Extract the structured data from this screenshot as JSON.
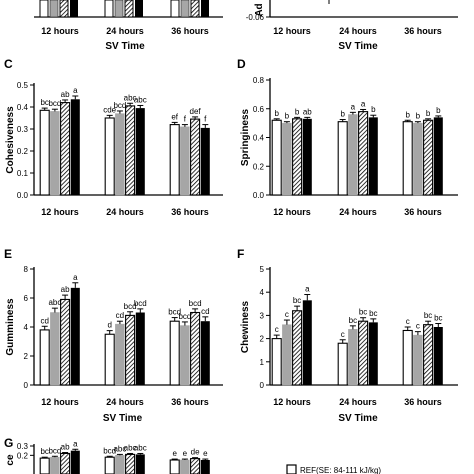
{
  "colors": {
    "bar1": "#ffffff",
    "bar2": "#a6a6a6",
    "bar3": "hatch",
    "bar4": "#000000",
    "stroke": "#000000"
  },
  "legend": {
    "items": [
      "REF(SE: 84-111 kJ/kg)"
    ]
  },
  "chart_data": [
    {
      "panel": "",
      "type": "bar",
      "ylabel": "Ad",
      "xlabel": "SV Time",
      "categories": [
        "12 hours",
        "24 hours",
        "36 hours"
      ],
      "y_ticks": [
        "-0.06"
      ],
      "partial": true,
      "series": [],
      "sig": []
    },
    {
      "panel": "C",
      "type": "bar",
      "ylabel": "Cohesiveness",
      "xlabel": "",
      "categories": [
        "12 hours",
        "24 hours",
        "36 hours"
      ],
      "ylim": [
        0,
        0.5
      ],
      "yticks": [
        0.0,
        0.1,
        0.2,
        0.3,
        0.4,
        0.5
      ],
      "y_ticks": [
        "0.0",
        "0.1",
        "0.2",
        "0.3",
        "0.4",
        "0.5"
      ],
      "series": [
        {
          "values": [
            0.385,
            0.35,
            0.32
          ],
          "err": [
            0.01,
            0.012,
            0.01
          ]
        },
        {
          "values": [
            0.38,
            0.37,
            0.31
          ],
          "err": [
            0.01,
            0.012,
            0.01
          ]
        },
        {
          "values": [
            0.42,
            0.405,
            0.345
          ],
          "err": [
            0.012,
            0.012,
            0.01
          ]
        },
        {
          "values": [
            0.435,
            0.395,
            0.305
          ],
          "err": [
            0.015,
            0.012,
            0.015
          ]
        }
      ],
      "sig": [
        [
          "bc",
          "bcd",
          "ab",
          "a"
        ],
        [
          "cde",
          "bcd",
          "abc",
          "abc"
        ],
        [
          "ef",
          "f",
          "def",
          "f"
        ]
      ]
    },
    {
      "panel": "D",
      "type": "bar",
      "ylabel": "Springiness",
      "xlabel": "",
      "categories": [
        "12 hours",
        "24 hours",
        "36 hours"
      ],
      "ylim": [
        0,
        0.8
      ],
      "yticks": [
        0.0,
        0.2,
        0.4,
        0.6,
        0.8
      ],
      "y_ticks": [
        "0.0",
        "0.2",
        "0.4",
        "0.6",
        "0.8"
      ],
      "series": [
        {
          "values": [
            0.52,
            0.51,
            0.51
          ],
          "err": [
            0.01,
            0.015,
            0.01
          ]
        },
        {
          "values": [
            0.5,
            0.56,
            0.5
          ],
          "err": [
            0.01,
            0.015,
            0.01
          ]
        },
        {
          "values": [
            0.53,
            0.58,
            0.52
          ],
          "err": [
            0.01,
            0.015,
            0.01
          ]
        },
        {
          "values": [
            0.53,
            0.54,
            0.54
          ],
          "err": [
            0.01,
            0.015,
            0.01
          ]
        }
      ],
      "sig": [
        [
          "b",
          "b",
          "b",
          "ab"
        ],
        [
          "b",
          "a",
          "a",
          "b"
        ],
        [
          "b",
          "b",
          "b",
          "b"
        ]
      ]
    },
    {
      "panel": "E",
      "type": "bar",
      "ylabel": "Gumminess",
      "xlabel": "SV Time",
      "categories": [
        "12 hours",
        "24 hours",
        "36 hours"
      ],
      "ylim": [
        0,
        8
      ],
      "yticks": [
        0,
        2,
        4,
        6,
        8
      ],
      "y_ticks": [
        "0",
        "2",
        "4",
        "6",
        "8"
      ],
      "series": [
        {
          "values": [
            3.8,
            3.5,
            4.4
          ],
          "err": [
            0.25,
            0.25,
            0.25
          ]
        },
        {
          "values": [
            5.0,
            4.2,
            4.1
          ],
          "err": [
            0.3,
            0.2,
            0.25
          ]
        },
        {
          "values": [
            5.9,
            4.8,
            5.0
          ],
          "err": [
            0.3,
            0.25,
            0.25
          ]
        },
        {
          "values": [
            6.7,
            5.0,
            4.4
          ],
          "err": [
            0.35,
            0.25,
            0.3
          ]
        }
      ],
      "sig": [
        [
          "cd",
          "abc",
          "ab",
          "a"
        ],
        [
          "d",
          "cd",
          "bcd",
          "bcd"
        ],
        [
          "bcd",
          "bcd",
          "bcd",
          "cd"
        ]
      ]
    },
    {
      "panel": "F",
      "type": "bar",
      "ylabel": "Chewiness",
      "xlabel": "SV Time",
      "categories": [
        "12 hours",
        "24 hours",
        "36 hours"
      ],
      "ylim": [
        0,
        5
      ],
      "yticks": [
        0,
        1,
        2,
        3,
        4,
        5
      ],
      "y_ticks": [
        "0",
        "1",
        "2",
        "3",
        "4",
        "5"
      ],
      "series": [
        {
          "values": [
            2.0,
            1.8,
            2.35
          ],
          "err": [
            0.15,
            0.15,
            0.15
          ]
        },
        {
          "values": [
            2.6,
            2.4,
            2.15
          ],
          "err": [
            0.2,
            0.15,
            0.15
          ]
        },
        {
          "values": [
            3.2,
            2.75,
            2.6
          ],
          "err": [
            0.2,
            0.15,
            0.15
          ]
        },
        {
          "values": [
            3.65,
            2.7,
            2.5
          ],
          "err": [
            0.25,
            0.15,
            0.15
          ]
        }
      ],
      "sig": [
        [
          "c",
          "c",
          "bc",
          "a"
        ],
        [
          "c",
          "bc",
          "bc",
          "bc"
        ],
        [
          "c",
          "c",
          "bc",
          "bc"
        ]
      ]
    },
    {
      "panel": "G",
      "type": "bar",
      "ylabel": "ce",
      "xlabel": "",
      "categories": [
        "12 hours",
        "24 hours",
        "36 hours"
      ],
      "ylim": [
        0,
        0.3
      ],
      "yticks": [
        0.2,
        0.3
      ],
      "y_ticks": [
        "0.2",
        "0.3"
      ],
      "partial": true,
      "series": [
        {
          "values": [
            0.17,
            0.18,
            0.15
          ],
          "err": [
            0.01,
            0.01,
            0.01
          ]
        },
        {
          "values": [
            0.18,
            0.2,
            0.15
          ],
          "err": [
            0.01,
            0.01,
            0.01
          ]
        },
        {
          "values": [
            0.22,
            0.21,
            0.165
          ],
          "err": [
            0.01,
            0.01,
            0.01
          ]
        },
        {
          "values": [
            0.25,
            0.21,
            0.15
          ],
          "err": [
            0.015,
            0.01,
            0.01
          ]
        }
      ],
      "sig": [
        [
          "bc",
          "bcd",
          "ab",
          "a"
        ],
        [
          "bcd",
          "abc",
          "abc",
          "abc"
        ],
        [
          "e",
          "e",
          "de",
          "e"
        ]
      ]
    }
  ]
}
